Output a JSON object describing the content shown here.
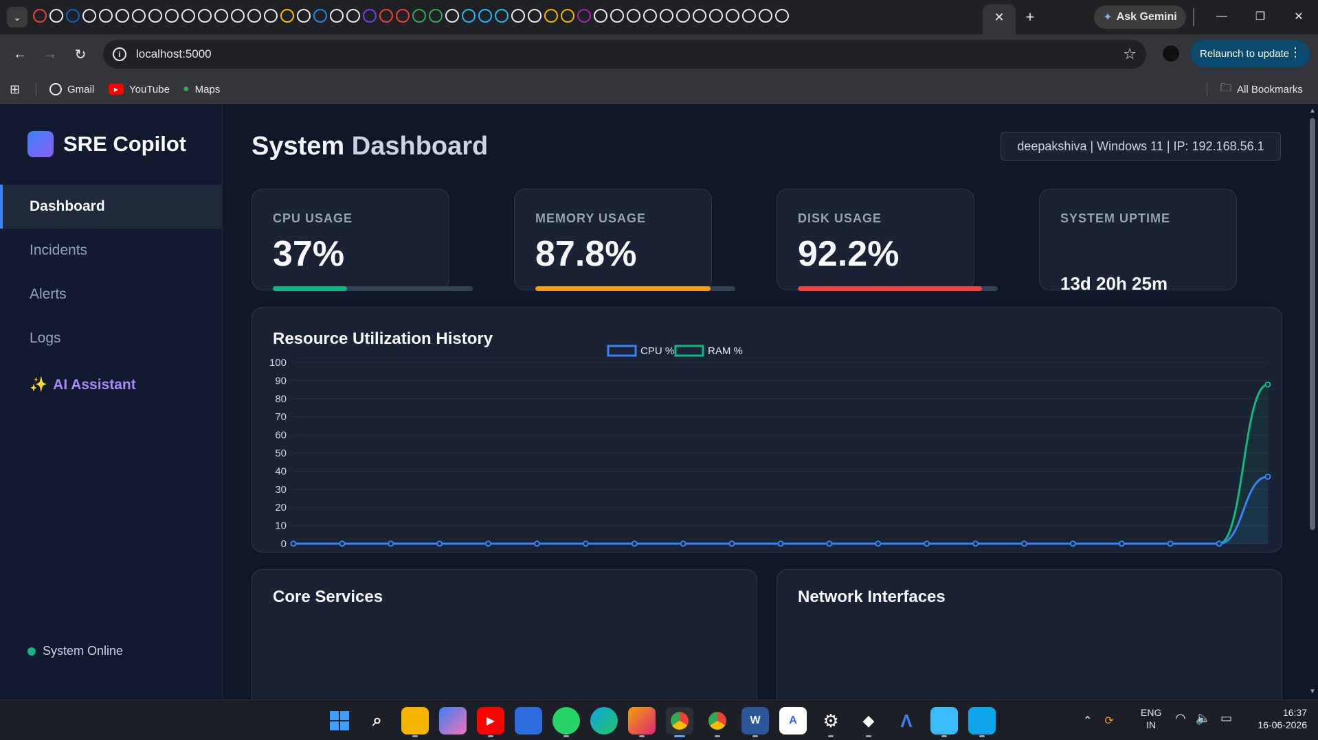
{
  "browser": {
    "url": "localhost:5000",
    "ask_gemini_label": "Ask Gemini",
    "relaunch_label": "Relaunch to update",
    "bookmarks": [
      {
        "label": "Gmail",
        "icon": "globe-icon",
        "color": "#e8eaed"
      },
      {
        "label": "YouTube",
        "icon": "youtube-icon",
        "color": "#ff0000"
      },
      {
        "label": "Maps",
        "icon": "maps-icon",
        "color": "#34a853"
      }
    ],
    "all_bookmarks_label": "All Bookmarks"
  },
  "sidebar": {
    "brand": "SRE Copilot",
    "nav": [
      {
        "label": "Dashboard",
        "active": true
      },
      {
        "label": "Incidents",
        "active": false
      },
      {
        "label": "Alerts",
        "active": false
      },
      {
        "label": "Logs",
        "active": false
      }
    ],
    "ai_assistant": {
      "icon": "✨",
      "label": "AI Assistant"
    },
    "status": "System Online"
  },
  "header": {
    "title_part1": "System",
    "title_part2": "Dashboard",
    "system_info": "deepakshiva | Windows 11 | IP: 192.168.56.1"
  },
  "stats": [
    {
      "label": "CPU USAGE",
      "value": "37%",
      "fill": 0.37,
      "color": "#10b981"
    },
    {
      "label": "MEMORY USAGE",
      "value": "87.8%",
      "fill": 0.878,
      "color": "#f59e0b"
    },
    {
      "label": "DISK USAGE",
      "value": "92.2%",
      "fill": 0.922,
      "color": "#ef4444"
    },
    {
      "label": "SYSTEM UPTIME",
      "value": "13d 20h 25m"
    }
  ],
  "chart_panel": {
    "title": "Resource Utilization History"
  },
  "chart_data": {
    "type": "line",
    "title": "Resource Utilization History",
    "xlabel": "",
    "ylabel": "",
    "ylim": [
      0,
      100
    ],
    "yticks": [
      0,
      10,
      20,
      30,
      40,
      50,
      60,
      70,
      80,
      90,
      100
    ],
    "grid": true,
    "legend": "top-center",
    "series": [
      {
        "name": "CPU %",
        "color": "#3b82f6",
        "values": [
          0,
          0,
          0,
          0,
          0,
          0,
          0,
          0,
          0,
          0,
          0,
          0,
          0,
          0,
          0,
          0,
          0,
          0,
          0,
          0,
          37
        ]
      },
      {
        "name": "RAM %",
        "color": "#10b981",
        "values": [
          0,
          0,
          0,
          0,
          0,
          0,
          0,
          0,
          0,
          0,
          0,
          0,
          0,
          0,
          0,
          0,
          0,
          0,
          0,
          0,
          87.8
        ]
      }
    ]
  },
  "panels": {
    "core_services": "Core Services",
    "network_interfaces": "Network Interfaces"
  },
  "taskbar": {
    "lang_line1": "ENG",
    "lang_line2": "IN",
    "time": "16:37",
    "date": "16-06-2026"
  }
}
